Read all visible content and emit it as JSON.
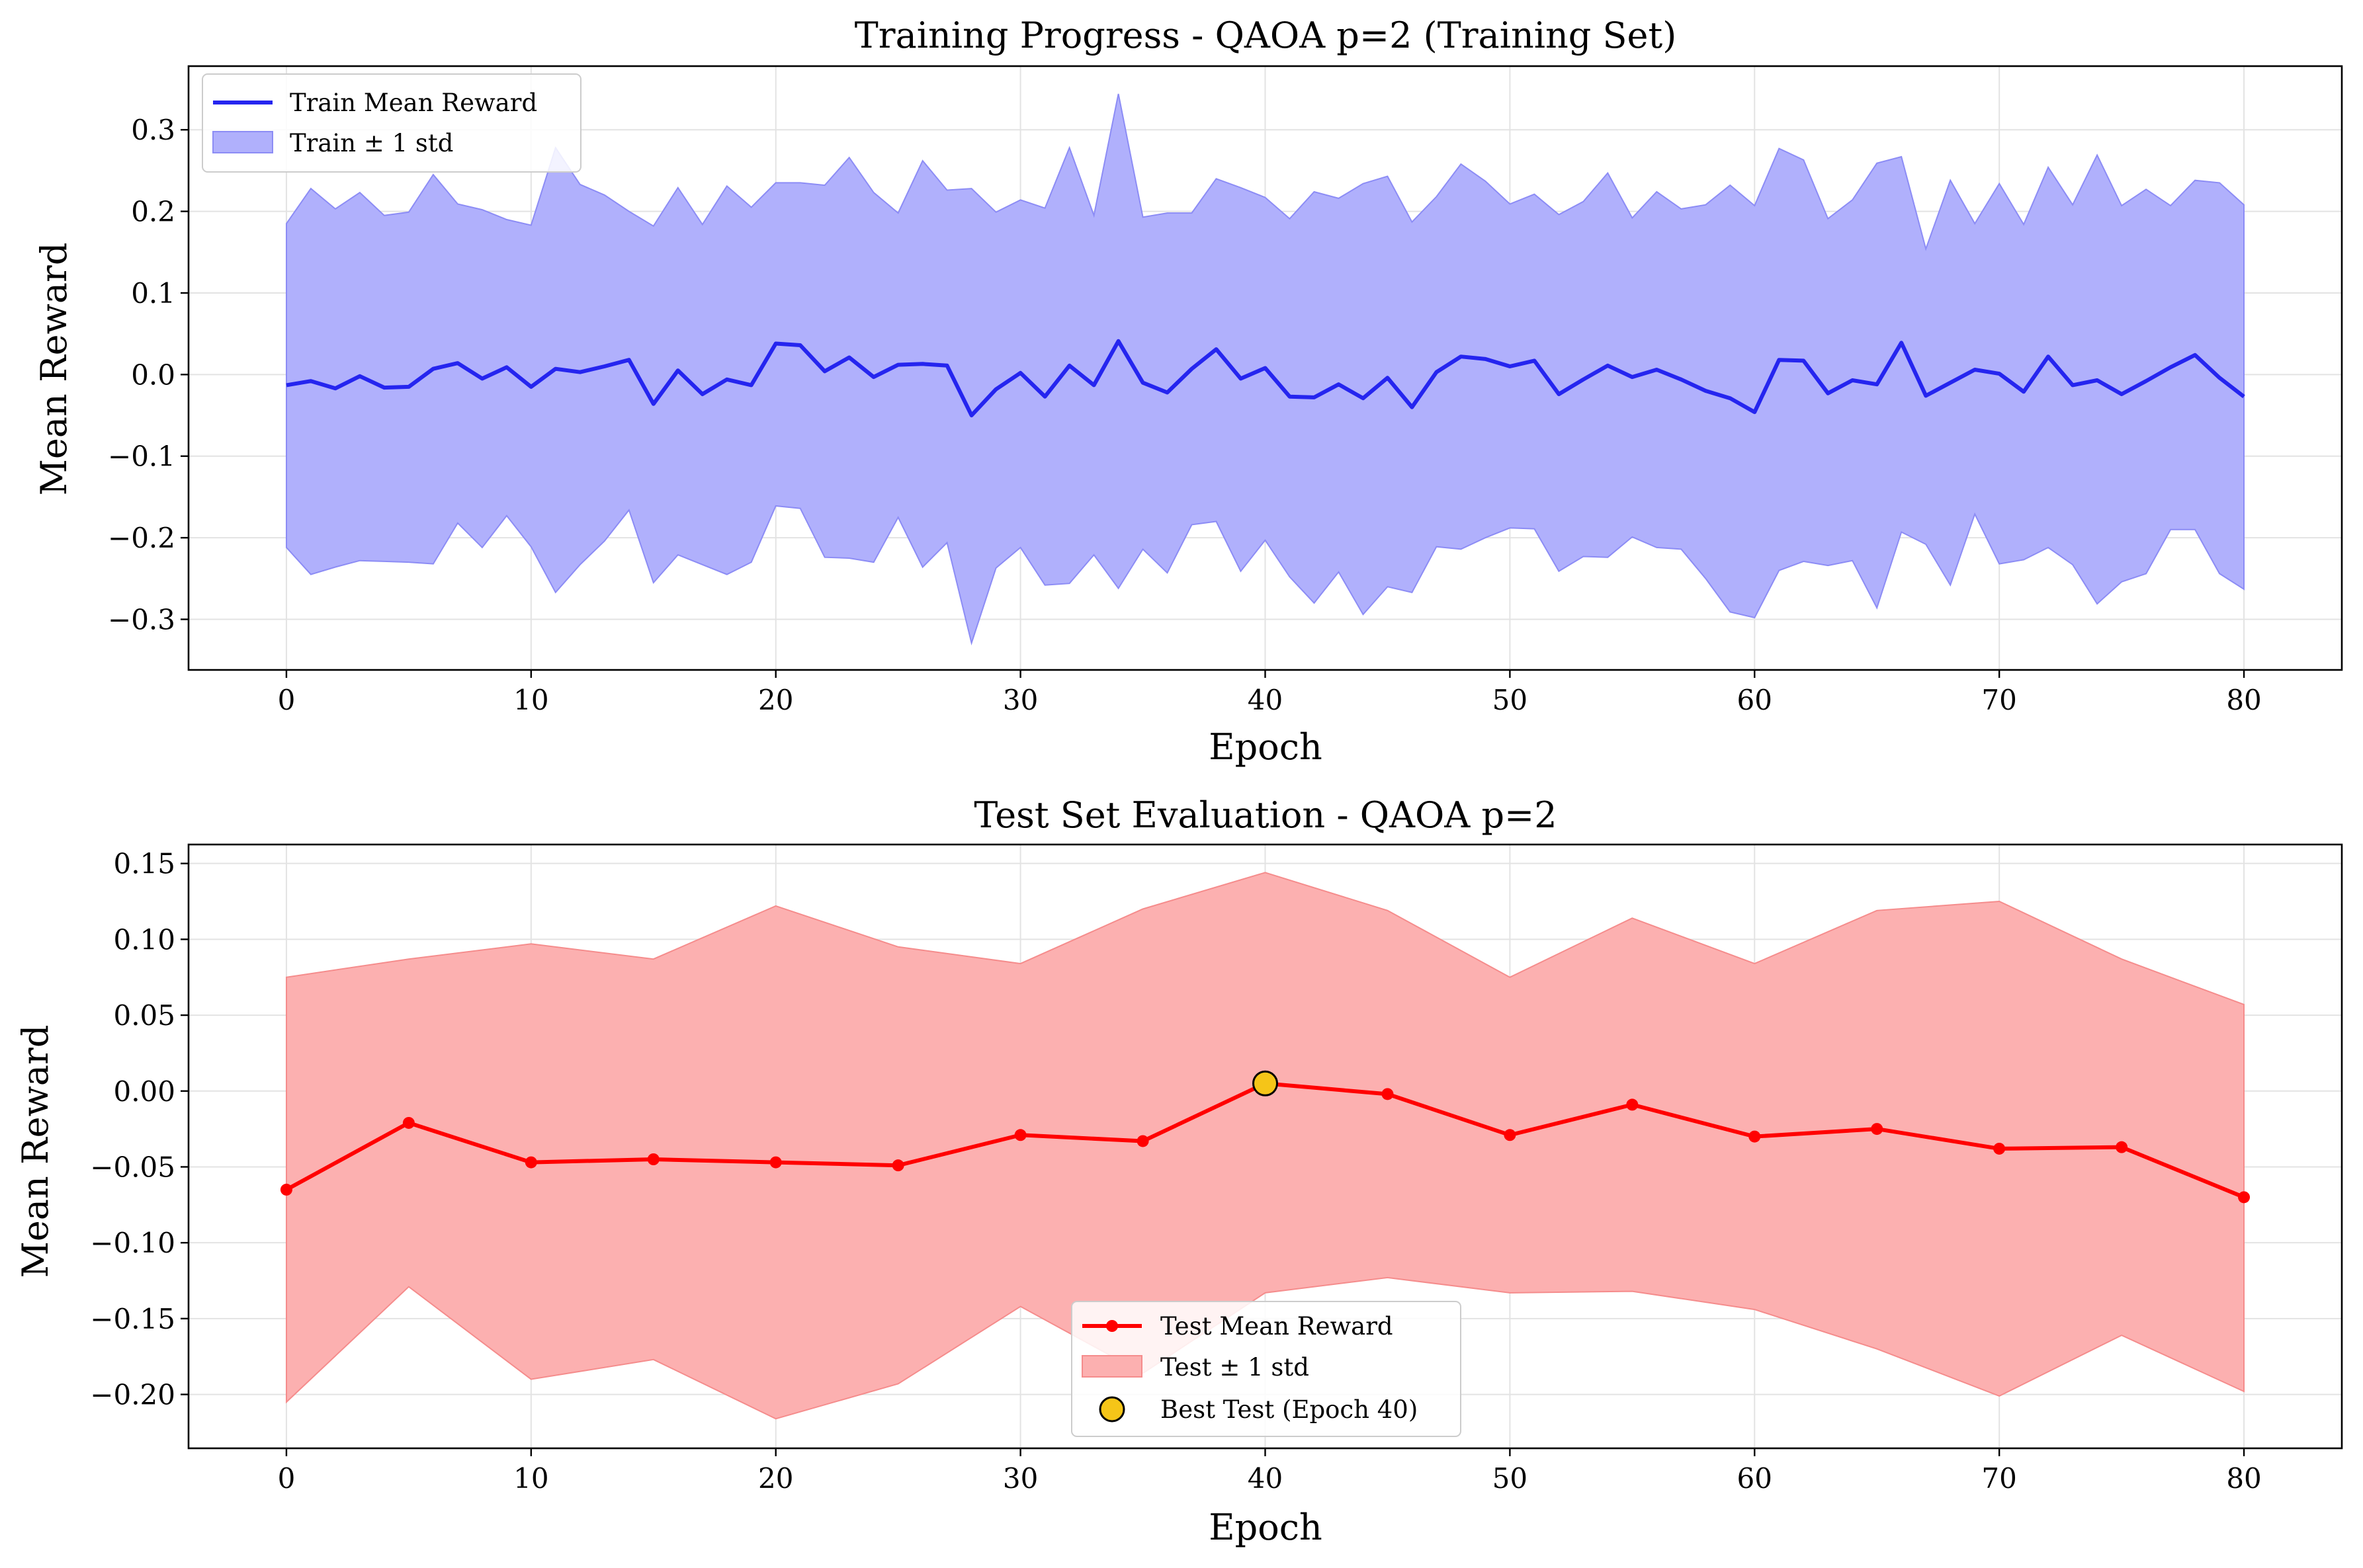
{
  "chart_data": [
    {
      "type": "line",
      "title": "Training Progress - QAOA p=2 (Training Set)",
      "xlabel": "Epoch",
      "ylabel": "Mean Reward",
      "xlim": [
        -4,
        84
      ],
      "ylim": [
        -0.362,
        0.378
      ],
      "xticks": [
        0,
        10,
        20,
        30,
        40,
        50,
        60,
        70,
        80
      ],
      "xtick_labels": [
        "0",
        "10",
        "20",
        "30",
        "40",
        "50",
        "60",
        "70",
        "80"
      ],
      "yticks": [
        -0.3,
        -0.2,
        -0.1,
        0.0,
        0.1,
        0.2,
        0.3
      ],
      "ytick_labels": [
        "−0.3",
        "−0.2",
        "−0.1",
        "0.0",
        "0.1",
        "0.2",
        "0.3"
      ],
      "grid": true,
      "legend_position": "upper-left",
      "colors": {
        "line": "#2525ef",
        "band": "#b0b0fc",
        "band_edge": "#8c8cf5"
      },
      "series": [
        {
          "name": "Train Mean Reward",
          "x": [
            0,
            1,
            2,
            3,
            4,
            5,
            6,
            7,
            8,
            9,
            10,
            11,
            12,
            13,
            14,
            15,
            16,
            17,
            18,
            19,
            20,
            21,
            22,
            23,
            24,
            25,
            26,
            27,
            28,
            29,
            30,
            31,
            32,
            33,
            34,
            35,
            36,
            37,
            38,
            39,
            40,
            41,
            42,
            43,
            44,
            45,
            46,
            47,
            48,
            49,
            50,
            51,
            52,
            53,
            54,
            55,
            56,
            57,
            58,
            59,
            60,
            61,
            62,
            63,
            64,
            65,
            66,
            67,
            68,
            69,
            70,
            71,
            72,
            73,
            74,
            75,
            76,
            77,
            78,
            79,
            80
          ],
          "values": [
            -0.013,
            -0.008,
            -0.017,
            -0.002,
            -0.016,
            -0.015,
            0.007,
            0.014,
            -0.005,
            0.009,
            -0.015,
            0.007,
            0.003,
            0.01,
            0.018,
            -0.036,
            0.005,
            -0.024,
            -0.006,
            -0.013,
            0.038,
            0.036,
            0.004,
            0.021,
            -0.003,
            0.012,
            0.013,
            0.011,
            -0.05,
            -0.018,
            0.002,
            -0.027,
            0.011,
            -0.013,
            0.041,
            -0.01,
            -0.022,
            0.007,
            0.031,
            -0.005,
            0.008,
            -0.027,
            -0.028,
            -0.012,
            -0.029,
            -0.004,
            -0.04,
            0.003,
            0.022,
            0.019,
            0.01,
            0.017,
            -0.024,
            -0.006,
            0.011,
            -0.003,
            0.006,
            -0.006,
            -0.02,
            -0.029,
            -0.046,
            0.018,
            0.017,
            -0.023,
            -0.007,
            -0.012,
            0.039,
            -0.026,
            -0.01,
            0.006,
            0.001,
            -0.021,
            0.022,
            -0.013,
            -0.007,
            -0.024,
            -0.008,
            0.009,
            0.024,
            -0.004,
            -0.027
          ]
        },
        {
          "name": "Train ± 1 std",
          "upper": [
            0.185,
            0.228,
            0.203,
            0.223,
            0.195,
            0.199,
            0.245,
            0.209,
            0.202,
            0.19,
            0.183,
            0.278,
            0.233,
            0.22,
            0.2,
            0.182,
            0.229,
            0.184,
            0.231,
            0.205,
            0.235,
            0.235,
            0.232,
            0.266,
            0.223,
            0.198,
            0.262,
            0.226,
            0.228,
            0.199,
            0.214,
            0.204,
            0.278,
            0.195,
            0.344,
            0.193,
            0.198,
            0.198,
            0.24,
            0.229,
            0.217,
            0.191,
            0.224,
            0.216,
            0.234,
            0.243,
            0.187,
            0.218,
            0.258,
            0.237,
            0.209,
            0.221,
            0.196,
            0.212,
            0.247,
            0.192,
            0.224,
            0.203,
            0.208,
            0.232,
            0.207,
            0.277,
            0.263,
            0.191,
            0.214,
            0.259,
            0.267,
            0.154,
            0.238,
            0.185,
            0.234,
            0.184,
            0.254,
            0.208,
            0.269,
            0.207,
            0.227,
            0.207,
            0.238,
            0.235,
            0.208
          ],
          "lower": [
            -0.212,
            -0.245,
            -0.236,
            -0.228,
            -0.229,
            -0.23,
            -0.232,
            -0.182,
            -0.212,
            -0.173,
            -0.211,
            -0.267,
            -0.233,
            -0.204,
            -0.166,
            -0.255,
            -0.221,
            -0.233,
            -0.245,
            -0.23,
            -0.161,
            -0.164,
            -0.224,
            -0.225,
            -0.23,
            -0.175,
            -0.236,
            -0.206,
            -0.329,
            -0.237,
            -0.212,
            -0.258,
            -0.256,
            -0.221,
            -0.262,
            -0.214,
            -0.243,
            -0.184,
            -0.18,
            -0.241,
            -0.203,
            -0.248,
            -0.28,
            -0.242,
            -0.294,
            -0.26,
            -0.267,
            -0.211,
            -0.214,
            -0.2,
            -0.188,
            -0.189,
            -0.241,
            -0.223,
            -0.224,
            -0.199,
            -0.212,
            -0.214,
            -0.25,
            -0.291,
            -0.298,
            -0.24,
            -0.229,
            -0.234,
            -0.228,
            -0.286,
            -0.193,
            -0.208,
            -0.258,
            -0.171,
            -0.232,
            -0.227,
            -0.212,
            -0.233,
            -0.281,
            -0.254,
            -0.244,
            -0.19,
            -0.19,
            -0.244,
            -0.263
          ]
        }
      ]
    },
    {
      "type": "line",
      "title": "Test Set Evaluation - QAOA p=2",
      "xlabel": "Epoch",
      "ylabel": "Mean Reward",
      "xlim": [
        -4,
        84
      ],
      "ylim": [
        -0.2355,
        0.1625
      ],
      "xticks": [
        0,
        10,
        20,
        30,
        40,
        50,
        60,
        70,
        80
      ],
      "xtick_labels": [
        "0",
        "10",
        "20",
        "30",
        "40",
        "50",
        "60",
        "70",
        "80"
      ],
      "yticks": [
        -0.2,
        -0.15,
        -0.1,
        -0.05,
        0.0,
        0.05,
        0.1,
        0.15
      ],
      "ytick_labels": [
        "−0.20",
        "−0.15",
        "−0.10",
        "−0.05",
        "0.00",
        "0.05",
        "0.10",
        "0.15"
      ],
      "grid": true,
      "legend_position": "lower-center",
      "colors": {
        "line": "#ff0000",
        "band": "#fcb0b0",
        "band_edge": "#f58c8c",
        "best": "#f5c518"
      },
      "series": [
        {
          "name": "Test Mean Reward",
          "x": [
            0,
            5,
            10,
            15,
            20,
            25,
            30,
            35,
            40,
            45,
            50,
            55,
            60,
            65,
            70,
            75,
            80
          ],
          "values": [
            -0.065,
            -0.021,
            -0.047,
            -0.045,
            -0.047,
            -0.049,
            -0.029,
            -0.033,
            0.005,
            -0.002,
            -0.029,
            -0.009,
            -0.03,
            -0.025,
            -0.038,
            -0.037,
            -0.07
          ]
        },
        {
          "name": "Test ± 1 std",
          "upper": [
            0.075,
            0.087,
            0.097,
            0.087,
            0.122,
            0.095,
            0.084,
            0.12,
            0.144,
            0.119,
            0.075,
            0.114,
            0.084,
            0.119,
            0.125,
            0.087,
            0.057
          ],
          "lower": [
            -0.205,
            -0.129,
            -0.19,
            -0.177,
            -0.216,
            -0.193,
            -0.142,
            -0.186,
            -0.133,
            -0.123,
            -0.133,
            -0.132,
            -0.144,
            -0.17,
            -0.201,
            -0.161,
            -0.198
          ]
        },
        {
          "name": "Best Test (Epoch 40)",
          "x": [
            40
          ],
          "values": [
            0.005
          ]
        }
      ]
    }
  ]
}
